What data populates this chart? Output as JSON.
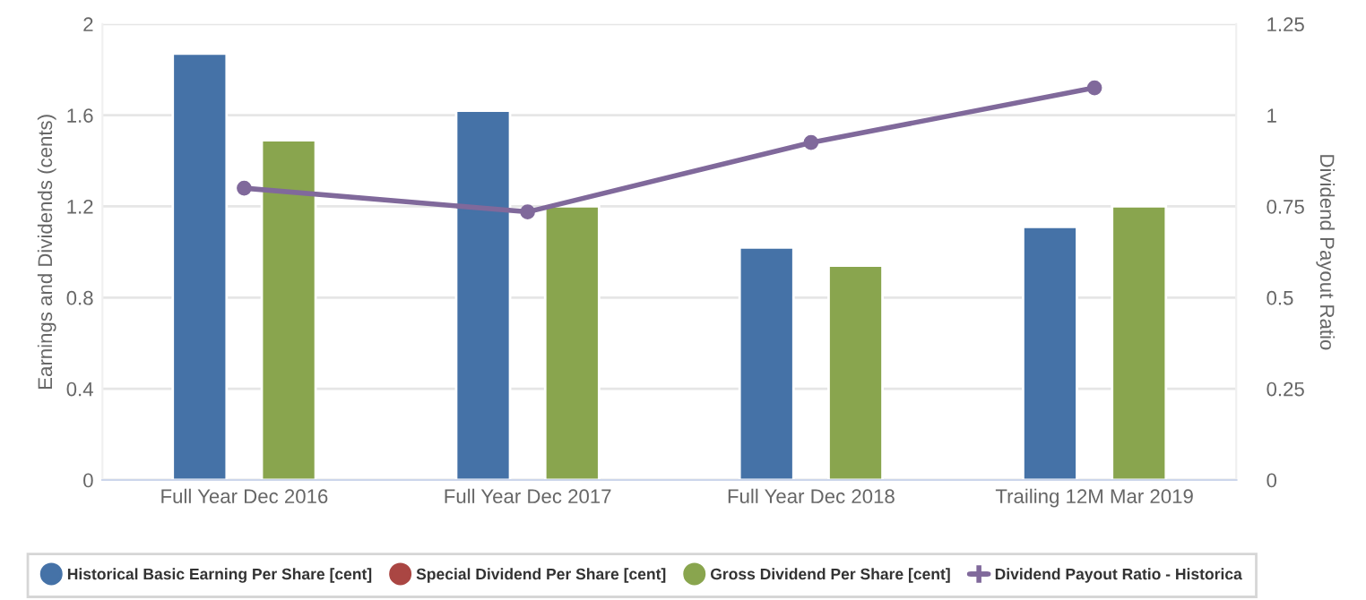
{
  "chart_data": {
    "type": "bar",
    "ylabel": "Earnings and Dividends (cents)",
    "y2label": "Dividend Payout Ratio",
    "categories": [
      "Full Year Dec 2016",
      "Full Year Dec 2017",
      "Full Year Dec 2018",
      "Trailing 12M Mar 2019"
    ],
    "series": [
      {
        "name": "Historical Basic Earning Per Share [cent]",
        "color": "#4572a7",
        "values": [
          1.87,
          1.62,
          1.02,
          1.11
        ]
      },
      {
        "name": "Special Dividend Per Share [cent]",
        "color": "#aa4643",
        "values": [
          null,
          null,
          null,
          null
        ]
      },
      {
        "name": "Gross Dividend Per Share [cent]",
        "color": "#89a54e",
        "values": [
          1.49,
          1.2,
          0.94,
          1.2
        ]
      },
      {
        "name": "Dividend Payout Ratio - Historica",
        "type": "line",
        "axis": "y2",
        "marker": "circle",
        "color": "#80699b",
        "values": [
          0.8,
          0.735,
          0.925,
          1.075
        ]
      }
    ],
    "ylim": [
      0,
      2
    ],
    "yticks": [
      0,
      0.4,
      0.8,
      1.2,
      1.6,
      2
    ],
    "y2lim": [
      0,
      1.25
    ],
    "y2ticks": [
      0,
      0.25,
      0.5,
      0.75,
      1,
      1.25
    ],
    "grid": "y",
    "legend": "bottom"
  }
}
